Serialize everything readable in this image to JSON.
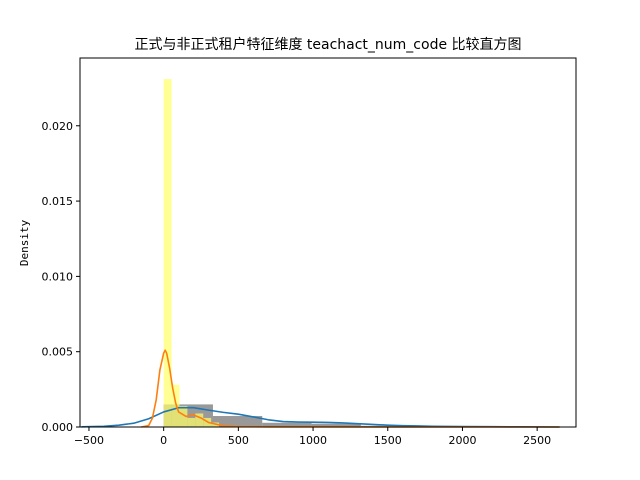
{
  "chart_data": {
    "type": "histogram",
    "title": "正式与非正式租户特征维度 teachact_num_code 比较直方图",
    "xlabel": "",
    "ylabel": "Density",
    "xlim": [
      -560,
      2760
    ],
    "ylim": [
      0,
      0.0245
    ],
    "x_ticks": [
      -500,
      0,
      500,
      1000,
      1500,
      2000,
      2500
    ],
    "x_tick_labels": [
      "−500",
      "0",
      "500",
      "1000",
      "1500",
      "2000",
      "2500"
    ],
    "y_ticks": [
      0.0,
      0.005,
      0.01,
      0.015,
      0.02
    ],
    "y_tick_labels": [
      "0.000",
      "0.005",
      "0.010",
      "0.015",
      "0.020"
    ],
    "grid": false,
    "legend": "none",
    "colors": {
      "series_a_bars": "#7f7f7f",
      "series_a_kde": "#1f77b4",
      "series_b_bars": "#ffff66",
      "series_b_kde": "#ff7f0e",
      "overlap": "#b5b550"
    },
    "series": [
      {
        "role": "series-a",
        "bins": [
          {
            "x0": 0,
            "x1": 330,
            "density": 0.0015
          },
          {
            "x0": 330,
            "x1": 660,
            "density": 0.00073
          },
          {
            "x0": 660,
            "x1": 990,
            "density": 0.00028
          },
          {
            "x0": 990,
            "x1": 1320,
            "density": 0.00022
          },
          {
            "x0": 1320,
            "x1": 1650,
            "density": 8e-05
          },
          {
            "x0": 1650,
            "x1": 1980,
            "density": 3e-05
          },
          {
            "x0": 1980,
            "x1": 2310,
            "density": 1e-05
          },
          {
            "x0": 2310,
            "x1": 2640,
            "density": 1e-05
          }
        ],
        "kde": {
          "x": [
            -550,
            -400,
            -300,
            -200,
            -100,
            0,
            100,
            200,
            300,
            400,
            500,
            600,
            700,
            800,
            900,
            1000,
            1100,
            1200,
            1300,
            1400,
            1500,
            1600,
            1700,
            1800,
            2000,
            2200,
            2400,
            2650
          ],
          "y": [
            1e-05,
            5e-05,
            0.00012,
            0.00025,
            0.00055,
            0.001,
            0.00128,
            0.00128,
            0.00112,
            0.00097,
            0.00085,
            0.00067,
            0.00048,
            0.00036,
            0.00033,
            0.00032,
            0.0003,
            0.00027,
            0.00022,
            0.00017,
            0.00012,
            9e-05,
            7e-05,
            5e-05,
            3e-05,
            2e-05,
            1e-05,
            0.0
          ]
        }
      },
      {
        "role": "series-b",
        "bins": [
          {
            "x0": 0,
            "x1": 53,
            "density": 0.0231
          },
          {
            "x0": 53,
            "x1": 106,
            "density": 0.0028
          },
          {
            "x0": 106,
            "x1": 159,
            "density": 0.0014
          },
          {
            "x0": 159,
            "x1": 212,
            "density": 0.0006
          },
          {
            "x0": 212,
            "x1": 265,
            "density": 0.0009
          },
          {
            "x0": 265,
            "x1": 318,
            "density": 0.0006
          },
          {
            "x0": 318,
            "x1": 371,
            "density": 0.0003
          }
        ],
        "kde": {
          "x": [
            -150,
            -100,
            -75,
            -50,
            -25,
            0,
            10,
            20,
            40,
            60,
            80,
            100,
            150,
            200,
            250,
            300,
            400,
            500,
            700,
            1000,
            1500,
            2000,
            2650
          ],
          "y": [
            0.0,
            0.0001,
            0.0006,
            0.0018,
            0.0038,
            0.0049,
            0.0051,
            0.0049,
            0.0039,
            0.0026,
            0.0016,
            0.001,
            0.0007,
            0.0008,
            0.0006,
            0.0003,
            8e-05,
            3e-05,
            1e-05,
            1e-05,
            0.0,
            0.0,
            0.0
          ]
        }
      }
    ]
  }
}
